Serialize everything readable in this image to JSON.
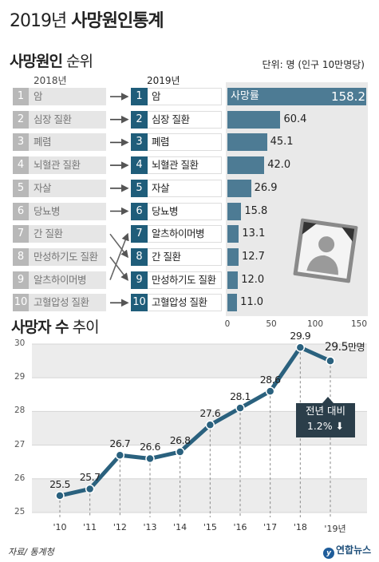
{
  "title": {
    "year": "2019년",
    "main": "사망원인통계"
  },
  "rank_section": {
    "title_bold": "사망원인",
    "title_rest": "순위",
    "unit": "단위: 명 (인구 10만명당)",
    "col_2018": "2018년",
    "col_2019": "2019년",
    "rank_2018": [
      {
        "rank": "1",
        "label": "암"
      },
      {
        "rank": "2",
        "label": "심장 질환"
      },
      {
        "rank": "3",
        "label": "폐렴"
      },
      {
        "rank": "4",
        "label": "뇌혈관 질환"
      },
      {
        "rank": "5",
        "label": "자살"
      },
      {
        "rank": "6",
        "label": "당뇨병"
      },
      {
        "rank": "7",
        "label": "간 질환"
      },
      {
        "rank": "8",
        "label": "만성하기도 질환"
      },
      {
        "rank": "9",
        "label": "알츠하이머병"
      },
      {
        "rank": "10",
        "label": "고혈압성 질환"
      }
    ],
    "rank_2019": [
      {
        "rank": "1",
        "label": "암"
      },
      {
        "rank": "2",
        "label": "심장 질환"
      },
      {
        "rank": "3",
        "label": "폐렴"
      },
      {
        "rank": "4",
        "label": "뇌혈관 질환"
      },
      {
        "rank": "5",
        "label": "자살"
      },
      {
        "rank": "6",
        "label": "당뇨병"
      },
      {
        "rank": "7",
        "label": "알츠하이머병"
      },
      {
        "rank": "8",
        "label": "간 질환"
      },
      {
        "rank": "9",
        "label": "만성하기도 질환"
      },
      {
        "rank": "10",
        "label": "고혈압성 질환"
      }
    ]
  },
  "chart_data": [
    {
      "type": "bar",
      "orientation": "horizontal",
      "series_label": "사망률",
      "categories": [
        "암",
        "심장 질환",
        "폐렴",
        "뇌혈관 질환",
        "자살",
        "당뇨병",
        "알츠하이머병",
        "간 질환",
        "만성하기도 질환",
        "고혈압성 질환"
      ],
      "values": [
        158.2,
        60.4,
        45.1,
        42.0,
        26.9,
        15.8,
        13.1,
        12.7,
        12.0,
        11.0
      ],
      "value_labels": [
        "158.2",
        "60.4",
        "45.1",
        "42.0",
        "26.9",
        "15.8",
        "13.1",
        "12.7",
        "12.0",
        "11.0"
      ],
      "xlim": [
        0,
        160
      ],
      "xticks": [
        "0",
        "50",
        "100",
        "150"
      ],
      "xtick_values": [
        0,
        50,
        100,
        150
      ]
    },
    {
      "type": "line",
      "title_bold": "사망자 수",
      "title_rest": "추이",
      "x": [
        "'10",
        "'11",
        "'12",
        "'13",
        "'14",
        "'15",
        "'16",
        "'17",
        "'18",
        "'19년"
      ],
      "values": [
        25.5,
        25.7,
        26.7,
        26.6,
        26.8,
        27.6,
        28.1,
        28.6,
        29.9,
        29.5
      ],
      "value_labels": [
        "25.5",
        "25.7",
        "26.7",
        "26.6",
        "26.8",
        "27.6",
        "28.1",
        "28.6",
        "29.9",
        "29.5"
      ],
      "last_value_unit": "만명",
      "ylim": [
        25,
        30
      ],
      "yticks": [
        "25",
        "26",
        "27",
        "28",
        "29",
        "30"
      ],
      "ytick_values": [
        25,
        26,
        27,
        28,
        29,
        30
      ],
      "grid": true,
      "line_color": "#2a617e",
      "annotation": {
        "line1": "전년 대비",
        "line2": "1.2%",
        "arrow": "⬇"
      }
    }
  ],
  "footer": {
    "source": "자료/ 통계청",
    "logo": "연합뉴스",
    "logo_mark": "y"
  },
  "colors": {
    "accent": "#1f5d7a",
    "bar": "#4d7b94",
    "old_rank": "#b8b8b8"
  }
}
